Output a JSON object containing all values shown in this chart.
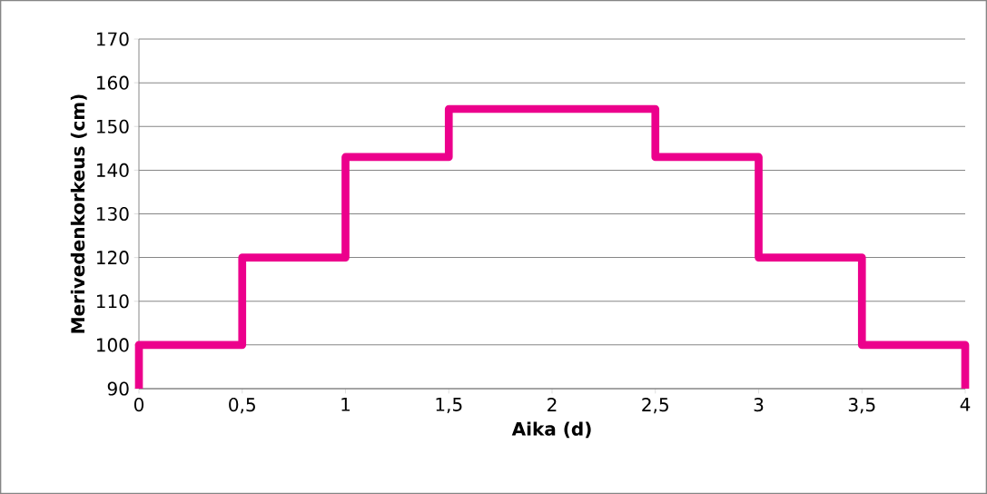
{
  "chart_data": {
    "type": "line",
    "xlabel": "Aika (d)",
    "ylabel": "Merivedenkorkeus (cm)",
    "x": [
      0,
      0,
      0.5,
      0.5,
      1,
      1,
      1.5,
      1.5,
      2.5,
      2.5,
      3,
      3,
      3.5,
      3.5,
      4,
      4
    ],
    "values": [
      90,
      100,
      100,
      120,
      120,
      143,
      143,
      154,
      154,
      143,
      143,
      120,
      120,
      100,
      100,
      90
    ],
    "color": "#ec008c",
    "xlim": [
      0,
      4
    ],
    "ylim": [
      90,
      170
    ],
    "xticks": [
      0,
      {
        "value": 0.5,
        "label": "0,5"
      },
      1,
      {
        "value": 1.5,
        "label": "1,5"
      },
      2,
      {
        "value": 2.5,
        "label": "2,5"
      },
      3,
      {
        "value": 3.5,
        "label": "3,5"
      },
      4
    ],
    "yticks": [
      90,
      100,
      110,
      120,
      130,
      140,
      150,
      160,
      170
    ],
    "grid": "y",
    "marker": "none",
    "line_style": "solid"
  }
}
